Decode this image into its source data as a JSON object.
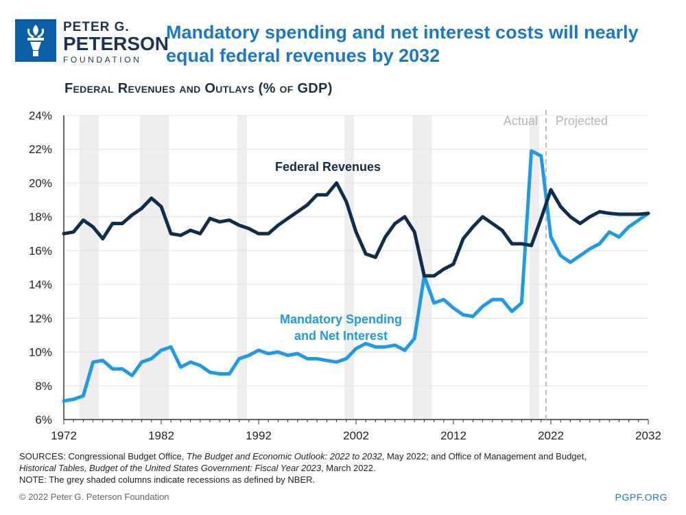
{
  "logo": {
    "line1": "PETER G.",
    "line2": "PETERSON",
    "line3": "FOUNDATION"
  },
  "title": "Mandatory spending and net interest costs will nearly equal federal revenues by 2032",
  "footer": {
    "sources_label": "SOURCES: Congressional Budget Office, ",
    "sources_title1": "The Budget and Economic Outlook: 2022 to 2032",
    "sources_mid": ", May 2022; and Office of Management and Budget, ",
    "sources_title2": "Historical Tables, Budget of the United States Government: Fiscal Year 2023",
    "sources_end": ", March 2022.",
    "note": "NOTE: The grey shaded columns indicate recessions as defined by NBER.",
    "copyright": "© 2022 Peter G. Peterson Foundation",
    "site": "PGPF.ORG"
  },
  "chart_data": {
    "type": "line",
    "title": "Federal Revenues and Outlays (% of GDP)",
    "xlabel": "",
    "ylabel": "",
    "xlim": [
      1972,
      2032
    ],
    "ylim": [
      6,
      24
    ],
    "x_ticks": [
      1972,
      1982,
      1992,
      2002,
      2012,
      2022,
      2032
    ],
    "y_ticks": [
      6,
      8,
      10,
      12,
      14,
      16,
      18,
      20,
      22,
      24
    ],
    "y_tick_labels": [
      "6%",
      "8%",
      "10%",
      "12%",
      "14%",
      "16%",
      "18%",
      "20%",
      "22%",
      "24%"
    ],
    "grid": "horizontal",
    "divider_year": 2021.5,
    "annotations": {
      "actual": "Actual",
      "projected": "Projected"
    },
    "recessions": [
      [
        1973.6,
        1975.6
      ],
      [
        1979.8,
        1982.8
      ],
      [
        1989.8,
        1990.8
      ],
      [
        2000.8,
        2001.8
      ],
      [
        2007.8,
        2009.8
      ],
      [
        2019.8,
        2020.8
      ]
    ],
    "x": [
      1972,
      1973,
      1974,
      1975,
      1976,
      1977,
      1978,
      1979,
      1980,
      1981,
      1982,
      1983,
      1984,
      1985,
      1986,
      1987,
      1988,
      1989,
      1990,
      1991,
      1992,
      1993,
      1994,
      1995,
      1996,
      1997,
      1998,
      1999,
      2000,
      2001,
      2002,
      2003,
      2004,
      2005,
      2006,
      2007,
      2008,
      2009,
      2010,
      2011,
      2012,
      2013,
      2014,
      2015,
      2016,
      2017,
      2018,
      2019,
      2020,
      2021,
      2022,
      2023,
      2024,
      2025,
      2026,
      2027,
      2028,
      2029,
      2030,
      2031,
      2032
    ],
    "series": [
      {
        "name": "Federal Revenues",
        "label_lines": [
          "Federal Revenues"
        ],
        "color": "#0f2d4c",
        "values": [
          17.0,
          17.1,
          17.8,
          17.4,
          16.7,
          17.6,
          17.6,
          18.1,
          18.5,
          19.1,
          18.6,
          17.0,
          16.9,
          17.2,
          17.0,
          17.9,
          17.7,
          17.8,
          17.5,
          17.3,
          17.0,
          17.0,
          17.5,
          17.9,
          18.3,
          18.7,
          19.3,
          19.3,
          20.0,
          18.9,
          17.1,
          15.8,
          15.6,
          16.8,
          17.6,
          18.0,
          17.1,
          14.5,
          14.5,
          14.9,
          15.2,
          16.7,
          17.4,
          18.0,
          17.6,
          17.2,
          16.4,
          16.4,
          16.3,
          17.9,
          19.6,
          18.6,
          18.0,
          17.6,
          18.0,
          18.3,
          18.2,
          18.15,
          18.15,
          18.15,
          18.2
        ]
      },
      {
        "name": "Mandatory Spending and Net Interest",
        "label_lines": [
          "Mandatory Spending",
          "and Net Interest"
        ],
        "color": "#1e9be8",
        "values": [
          7.1,
          7.2,
          7.4,
          9.4,
          9.5,
          9.0,
          9.0,
          8.6,
          9.4,
          9.6,
          10.1,
          10.3,
          9.1,
          9.4,
          9.2,
          8.8,
          8.7,
          8.7,
          9.6,
          9.8,
          10.1,
          9.9,
          10.0,
          9.8,
          9.9,
          9.6,
          9.6,
          9.5,
          9.4,
          9.6,
          10.2,
          10.5,
          10.3,
          10.3,
          10.4,
          10.1,
          10.8,
          14.5,
          12.9,
          13.1,
          12.6,
          12.2,
          12.1,
          12.7,
          13.1,
          13.1,
          12.4,
          12.9,
          21.9,
          21.6,
          16.8,
          15.7,
          15.3,
          15.7,
          16.1,
          16.4,
          17.1,
          16.8,
          17.4,
          17.8,
          18.2
        ]
      }
    ]
  }
}
